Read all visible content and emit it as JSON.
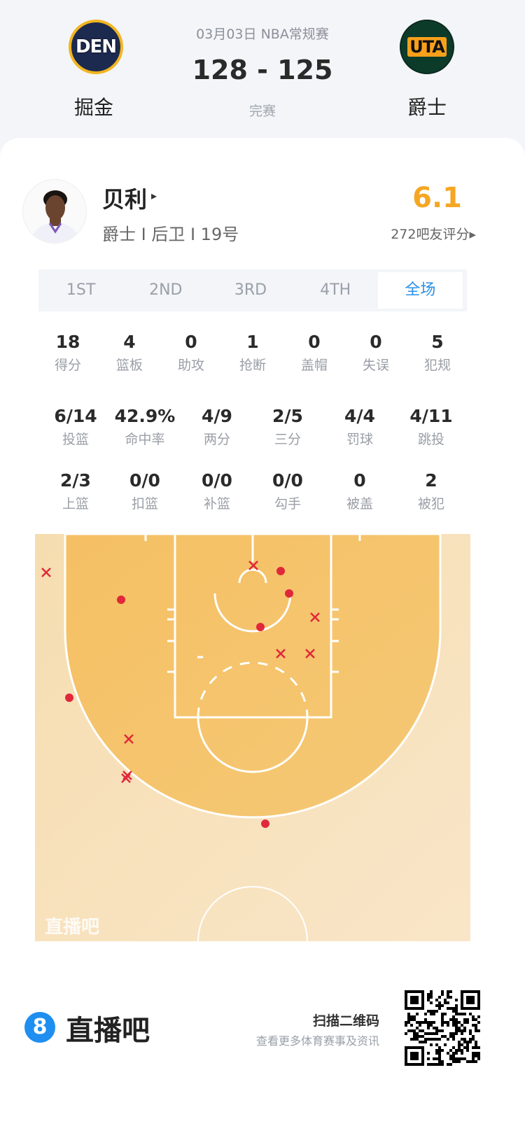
{
  "match": {
    "date_league": "03月03日 NBA常规赛",
    "score": "128 - 125",
    "status": "完赛",
    "home": {
      "abbr": "DEN",
      "name": "掘金",
      "color": "#1d2a4f",
      "accent": "#f2b521"
    },
    "away": {
      "abbr": "UTA",
      "name": "爵士",
      "color": "#0d3b2a",
      "accent": "#f9a01b"
    }
  },
  "player": {
    "name": "贝利",
    "arrow": "▸",
    "info": "爵士 I 后卫 I 19号",
    "rating": "6.1",
    "rating_count": "272吧友评分▸",
    "rating_color": "#f5a623"
  },
  "tabs": [
    {
      "label": "1ST"
    },
    {
      "label": "2ND"
    },
    {
      "label": "3RD"
    },
    {
      "label": "4TH"
    },
    {
      "label": "全场",
      "active": true
    }
  ],
  "stats_row1": [
    {
      "value": "18",
      "label": "得分"
    },
    {
      "value": "4",
      "label": "篮板"
    },
    {
      "value": "0",
      "label": "助攻"
    },
    {
      "value": "1",
      "label": "抢断"
    },
    {
      "value": "0",
      "label": "盖帽"
    },
    {
      "value": "0",
      "label": "失误"
    },
    {
      "value": "5",
      "label": "犯规"
    }
  ],
  "stats_row2": [
    {
      "value": "6/14",
      "label": "投篮"
    },
    {
      "value": "42.9%",
      "label": "命中率"
    },
    {
      "value": "4/9",
      "label": "两分"
    },
    {
      "value": "2/5",
      "label": "三分"
    },
    {
      "value": "4/4",
      "label": "罚球"
    },
    {
      "value": "4/11",
      "label": "跳投"
    }
  ],
  "stats_row3": [
    {
      "value": "2/3",
      "label": "上篮"
    },
    {
      "value": "0/0",
      "label": "扣篮"
    },
    {
      "value": "0/0",
      "label": "补篮"
    },
    {
      "value": "0/0",
      "label": "勾手"
    },
    {
      "value": "0",
      "label": "被盖"
    },
    {
      "value": "2",
      "label": "被犯"
    }
  ],
  "shot_chart": {
    "watermark": "直播吧",
    "made_color": "#e0283a",
    "shots": [
      "miss",
      "made",
      "miss",
      "made",
      "made",
      "miss",
      "made",
      "miss",
      "miss",
      "made",
      "miss",
      "miss",
      "miss",
      "made"
    ]
  },
  "footer": {
    "brand_icon": "8",
    "brand": "直播吧",
    "scan": "扫描二维码",
    "scan_sub": "查看更多体育赛事及资讯"
  }
}
